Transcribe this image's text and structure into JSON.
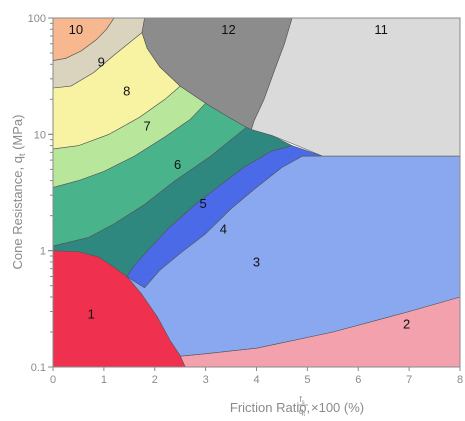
{
  "chart_data": {
    "type": "area",
    "title": "",
    "xlabel": {
      "prefix": "Friction Ratio, ",
      "fraction_numerator": "f",
      "fraction_numerator_sub": "s",
      "fraction_denominator": "q",
      "fraction_denominator_sub": "t",
      "suffix": " ×100 (%)"
    },
    "ylabel": {
      "prefix": "Cone Resistance, q",
      "sub": "t",
      "suffix": " (MPa)"
    },
    "xlim": [
      0,
      8
    ],
    "ylim": [
      0.1,
      100
    ],
    "yscale": "log",
    "xticks": [
      0,
      1,
      2,
      3,
      4,
      5,
      6,
      7,
      8
    ],
    "yticks": [
      {
        "value": 0.1,
        "label": "0.1"
      },
      {
        "value": 1,
        "label": "1"
      },
      {
        "value": 10,
        "label": "10"
      },
      {
        "value": 100,
        "label": "100"
      }
    ],
    "zones": [
      {
        "label": "1",
        "color": "#f0304f",
        "label_at": [
          0.75,
          0.28
        ]
      },
      {
        "label": "2",
        "color": "#f3a1ad",
        "label_at": [
          6.95,
          0.23
        ]
      },
      {
        "label": "3",
        "color": "#8aa8f0",
        "label_at": [
          4.0,
          0.78
        ]
      },
      {
        "label": "4",
        "color": "#4b6ae8",
        "label_at": [
          3.35,
          1.5
        ]
      },
      {
        "label": "5",
        "color": "#2e8880",
        "label_at": [
          2.95,
          2.5
        ]
      },
      {
        "label": "6",
        "color": "#49b48c",
        "label_at": [
          2.45,
          5.4
        ]
      },
      {
        "label": "7",
        "color": "#b8e69a",
        "label_at": [
          1.85,
          11.5
        ]
      },
      {
        "label": "8",
        "color": "#f8f3a3",
        "label_at": [
          1.45,
          23.0
        ]
      },
      {
        "label": "9",
        "color": "#dad3be",
        "label_at": [
          0.95,
          41.0
        ]
      },
      {
        "label": "10",
        "color": "#f7b890",
        "label_at": [
          0.45,
          78.0
        ]
      },
      {
        "label": "11",
        "color": "#dadada",
        "label_at": [
          6.45,
          78.0
        ]
      },
      {
        "label": "12",
        "color": "#8c8c8c",
        "label_at": [
          3.45,
          78.0
        ]
      }
    ]
  }
}
